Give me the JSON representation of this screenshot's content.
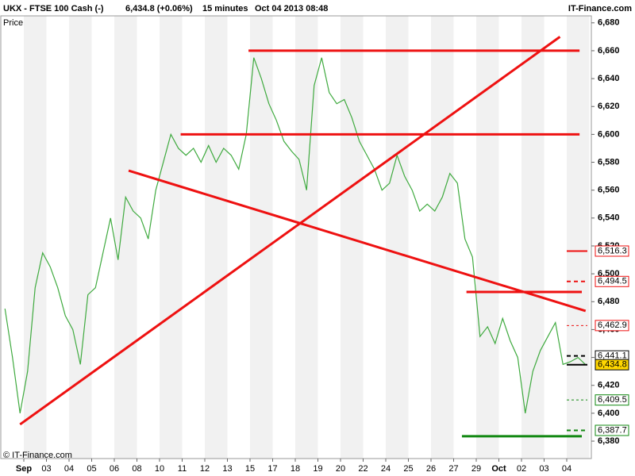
{
  "chart_data": {
    "type": "line",
    "title": "UKX - FTSE 100 Cash (-)",
    "last_quote": "6,434.8 (+0.06%)",
    "interval": "15 minutes",
    "timestamp": "Oct 04 2013 08:48",
    "source": "IT-Finance.com",
    "y_label": "Price",
    "copyright": "© IT-Finance.com",
    "categories": [
      null,
      null,
      null,
      "Sep",
      null,
      null,
      "03",
      null,
      null,
      "04",
      null,
      null,
      "05",
      null,
      null,
      "06",
      null,
      null,
      "08",
      null,
      null,
      "10",
      null,
      null,
      "11",
      null,
      null,
      "12",
      null,
      null,
      "13",
      null,
      null,
      "15",
      null,
      null,
      "17",
      null,
      null,
      "18",
      null,
      null,
      "19",
      null,
      null,
      "20",
      null,
      null,
      "22",
      null,
      null,
      "24",
      null,
      null,
      "25",
      null,
      null,
      "26",
      null,
      null,
      "27",
      null,
      null,
      "29",
      null,
      null,
      "Oct",
      null,
      null,
      "02",
      null,
      null,
      "03",
      null,
      null,
      "04",
      null,
      null
    ],
    "series": [
      {
        "name": "UKX",
        "color": "#3faa3f",
        "values": [
          6475,
          6440,
          6400,
          6430,
          6490,
          6515,
          6505,
          6490,
          6470,
          6460,
          6435,
          6485,
          6490,
          6515,
          6540,
          6510,
          6555,
          6545,
          6540,
          6525,
          6560,
          6580,
          6600,
          6590,
          6585,
          6590,
          6580,
          6592,
          6580,
          6590,
          6585,
          6575,
          6600,
          6655,
          6640,
          6622,
          6610,
          6595,
          6588,
          6582,
          6560,
          6635,
          6655,
          6630,
          6622,
          6625,
          6612,
          6595,
          6585,
          6575,
          6560,
          6565,
          6585,
          6570,
          6560,
          6545,
          6550,
          6545,
          6555,
          6572,
          6565,
          6525,
          6512,
          6455,
          6462,
          6450,
          6468,
          6452,
          6440,
          6400,
          6430,
          6445,
          6455,
          6465,
          6435,
          6437,
          6440,
          6434.8
        ]
      }
    ],
    "ylim": [
      6367.5,
      6685
    ],
    "yticks": [
      {
        "value": 6380,
        "label": "6,380"
      },
      {
        "value": 6400,
        "label": "6,400"
      },
      {
        "value": 6420,
        "label": "6,420"
      },
      {
        "value": 6440,
        "label": "6,440"
      },
      {
        "value": 6460,
        "label": "6,460"
      },
      {
        "value": 6480,
        "label": "6,480"
      },
      {
        "value": 6500,
        "label": "6,500"
      },
      {
        "value": 6520,
        "label": "6,520"
      },
      {
        "value": 6540,
        "label": "6,540"
      },
      {
        "value": 6560,
        "label": "6,560"
      },
      {
        "value": 6580,
        "label": "6,580"
      },
      {
        "value": 6600,
        "label": "6,600"
      },
      {
        "value": 6620,
        "label": "6,620"
      },
      {
        "value": 6640,
        "label": "6,640"
      },
      {
        "value": 6660,
        "label": "6,660"
      },
      {
        "value": 6680,
        "label": "6,680"
      }
    ],
    "trend_lines": [
      {
        "from": [
          32.3,
          6660
        ],
        "to": [
          76.2,
          6660
        ],
        "color": "#ee1111"
      },
      {
        "from": [
          23.3,
          6600
        ],
        "to": [
          76.2,
          6600
        ],
        "color": "#ee1111"
      },
      {
        "from": [
          2.0,
          6392
        ],
        "to": [
          73.6,
          6670
        ],
        "color": "#ee1111"
      },
      {
        "from": [
          16.4,
          6574
        ],
        "to": [
          77.0,
          6473.4
        ],
        "color": "#ee1111"
      },
      {
        "from": [
          61.2,
          6487
        ],
        "to": [
          76.5,
          6487
        ],
        "color": "#ee1111"
      },
      {
        "from": [
          60.6,
          6383.5
        ],
        "to": [
          76.5,
          6383.5
        ],
        "color": "#118811"
      }
    ],
    "levels": [
      {
        "value": 6516.3,
        "label": "6,516.3",
        "color": "#ee1111",
        "style": "solid"
      },
      {
        "value": 6494.5,
        "label": "6,494.5",
        "color": "#ee1111",
        "style": "dashed"
      },
      {
        "value": 6462.9,
        "label": "6,462.9",
        "color": "#ee1111",
        "style": "dotted"
      },
      {
        "value": 6441.1,
        "label": "6,441.1",
        "color": "#000000",
        "style": "dashed"
      },
      {
        "value": 6434.8,
        "label": "6,434.8",
        "color": "#000000",
        "style": "current"
      },
      {
        "value": 6409.5,
        "label": "6,409.5",
        "color": "#118811",
        "style": "dotted"
      },
      {
        "value": 6387.7,
        "label": "6,387.7",
        "color": "#118811",
        "style": "dashed"
      }
    ]
  }
}
